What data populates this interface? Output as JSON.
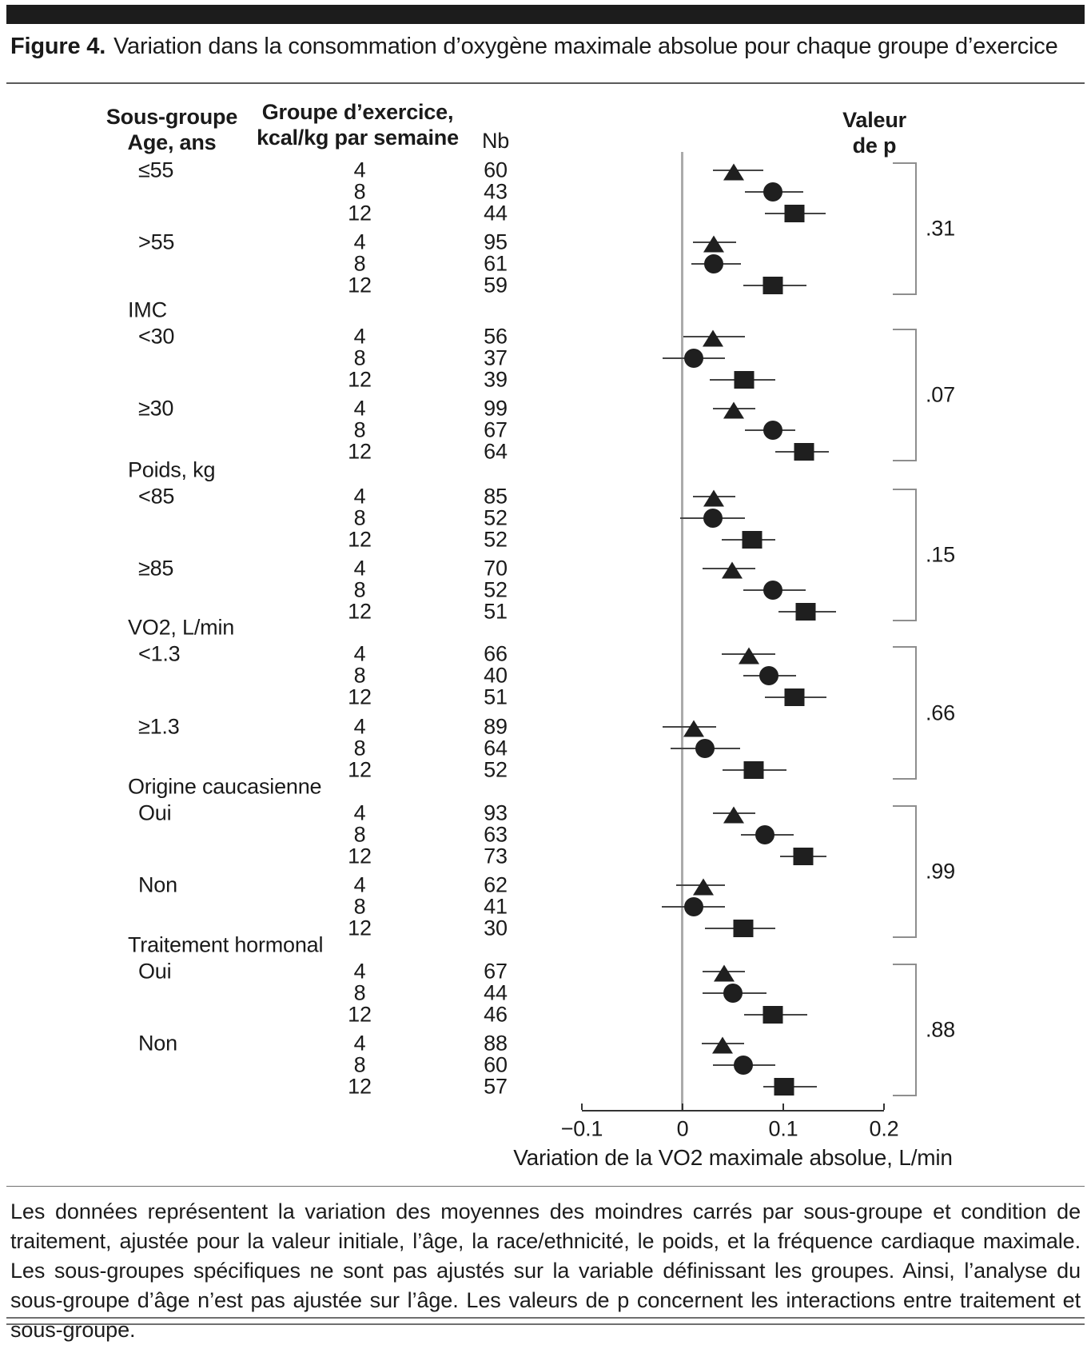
{
  "figure": {
    "label": "Figure 4.",
    "title": "Variation dans la consommation d’oxygène maximale absolue pour chaque groupe d’exercice"
  },
  "table": {
    "col1_header": [
      "Sous-groupe",
      "Age, ans"
    ],
    "col2_header": [
      "Groupe d’exercice,",
      "kcal/kg par semaine"
    ],
    "col3_header": "Nb",
    "pcol_header": [
      "Valeur",
      "de p"
    ]
  },
  "chart_data": {
    "type": "forest",
    "xlabel": "Variation de la VO2 maximale absolue, L/min",
    "x_ticks": [
      "−0.1",
      "0",
      "0.1",
      "0.2"
    ],
    "x_tick_values": [
      -0.1,
      0,
      0.1,
      0.2
    ],
    "xlim": [
      -0.1,
      0.2
    ],
    "grid": false,
    "markers": {
      "4": "triangle",
      "8": "circle",
      "12": "square"
    },
    "sections": [
      {
        "heading": null,
        "pvalue": ".31",
        "subgroups": [
          {
            "label": "≤55",
            "rows": [
              {
                "g": "4",
                "n": 60,
                "est": 0.051,
                "lo": 0.03,
                "hi": 0.08
              },
              {
                "g": "8",
                "n": 43,
                "est": 0.09,
                "lo": 0.062,
                "hi": 0.12
              },
              {
                "g": "12",
                "n": 44,
                "est": 0.111,
                "lo": 0.082,
                "hi": 0.142
              }
            ]
          },
          {
            "label": ">55",
            "rows": [
              {
                "g": "4",
                "n": 95,
                "est": 0.031,
                "lo": 0.01,
                "hi": 0.053
              },
              {
                "g": "8",
                "n": 61,
                "est": 0.031,
                "lo": 0.009,
                "hi": 0.058
              },
              {
                "g": "12",
                "n": 59,
                "est": 0.09,
                "lo": 0.06,
                "hi": 0.123
              }
            ]
          }
        ]
      },
      {
        "heading": "IMC",
        "pvalue": ".07",
        "subgroups": [
          {
            "label": "<30",
            "rows": [
              {
                "g": "4",
                "n": 56,
                "est": 0.03,
                "lo": 0.001,
                "hi": 0.062
              },
              {
                "g": "8",
                "n": 37,
                "est": 0.011,
                "lo": -0.02,
                "hi": 0.042
              },
              {
                "g": "12",
                "n": 39,
                "est": 0.061,
                "lo": 0.027,
                "hi": 0.092
              }
            ]
          },
          {
            "label": "≥30",
            "rows": [
              {
                "g": "4",
                "n": 99,
                "est": 0.051,
                "lo": 0.03,
                "hi": 0.072
              },
              {
                "g": "8",
                "n": 67,
                "est": 0.09,
                "lo": 0.062,
                "hi": 0.112
              },
              {
                "g": "12",
                "n": 64,
                "est": 0.121,
                "lo": 0.092,
                "hi": 0.145
              }
            ]
          }
        ]
      },
      {
        "heading": "Poids, kg",
        "pvalue": ".15",
        "subgroups": [
          {
            "label": "<85",
            "rows": [
              {
                "g": "4",
                "n": 85,
                "est": 0.031,
                "lo": 0.01,
                "hi": 0.052
              },
              {
                "g": "8",
                "n": 52,
                "est": 0.03,
                "lo": -0.002,
                "hi": 0.062
              },
              {
                "g": "12",
                "n": 52,
                "est": 0.069,
                "lo": 0.039,
                "hi": 0.092
              }
            ]
          },
          {
            "label": "≥85",
            "rows": [
              {
                "g": "4",
                "n": 70,
                "est": 0.049,
                "lo": 0.02,
                "hi": 0.072
              },
              {
                "g": "8",
                "n": 52,
                "est": 0.09,
                "lo": 0.06,
                "hi": 0.122
              },
              {
                "g": "12",
                "n": 51,
                "est": 0.122,
                "lo": 0.095,
                "hi": 0.152
              }
            ]
          }
        ]
      },
      {
        "heading": "VO2, L/min",
        "pvalue": ".66",
        "subgroups": [
          {
            "label": "<1.3",
            "rows": [
              {
                "g": "4",
                "n": 66,
                "est": 0.066,
                "lo": 0.039,
                "hi": 0.092
              },
              {
                "g": "8",
                "n": 40,
                "est": 0.086,
                "lo": 0.06,
                "hi": 0.113
              },
              {
                "g": "12",
                "n": 51,
                "est": 0.111,
                "lo": 0.082,
                "hi": 0.143
              }
            ]
          },
          {
            "label": "≥1.3",
            "rows": [
              {
                "g": "4",
                "n": 89,
                "est": 0.011,
                "lo": -0.02,
                "hi": 0.033
              },
              {
                "g": "8",
                "n": 64,
                "est": 0.022,
                "lo": -0.012,
                "hi": 0.057
              },
              {
                "g": "12",
                "n": 52,
                "est": 0.071,
                "lo": 0.04,
                "hi": 0.103
              }
            ]
          }
        ]
      },
      {
        "heading": "Origine caucasienne",
        "pvalue": ".99",
        "subgroups": [
          {
            "label": "Oui",
            "rows": [
              {
                "g": "4",
                "n": 93,
                "est": 0.051,
                "lo": 0.03,
                "hi": 0.072
              },
              {
                "g": "8",
                "n": 63,
                "est": 0.082,
                "lo": 0.058,
                "hi": 0.11
              },
              {
                "g": "12",
                "n": 73,
                "est": 0.12,
                "lo": 0.097,
                "hi": 0.143
              }
            ]
          },
          {
            "label": "Non",
            "rows": [
              {
                "g": "4",
                "n": 62,
                "est": 0.021,
                "lo": -0.006,
                "hi": 0.042
              },
              {
                "g": "8",
                "n": 41,
                "est": 0.011,
                "lo": -0.021,
                "hi": 0.042
              },
              {
                "g": "12",
                "n": 30,
                "est": 0.06,
                "lo": 0.022,
                "hi": 0.092
              }
            ]
          }
        ]
      },
      {
        "heading": "Traitement hormonal",
        "pvalue": ".88",
        "subgroups": [
          {
            "label": "Oui",
            "rows": [
              {
                "g": "4",
                "n": 67,
                "est": 0.041,
                "lo": 0.02,
                "hi": 0.062
              },
              {
                "g": "8",
                "n": 44,
                "est": 0.05,
                "lo": 0.02,
                "hi": 0.083
              },
              {
                "g": "12",
                "n": 46,
                "est": 0.09,
                "lo": 0.061,
                "hi": 0.124
              }
            ]
          },
          {
            "label": "Non",
            "rows": [
              {
                "g": "4",
                "n": 88,
                "est": 0.04,
                "lo": 0.019,
                "hi": 0.061
              },
              {
                "g": "8",
                "n": 60,
                "est": 0.06,
                "lo": 0.03,
                "hi": 0.092
              },
              {
                "g": "12",
                "n": 57,
                "est": 0.101,
                "lo": 0.08,
                "hi": 0.133
              }
            ]
          }
        ]
      }
    ]
  },
  "footnote": "Les données représentent la variation des moyennes des moindres carrés par sous-groupe et condition de traitement, ajustée pour la valeur initiale, l’âge, la race/ethnicité, le poids, et la fréquence cardiaque maximale. Les sous-groupes spécifiques ne sont pas ajustés sur la variable définissant les groupes. Ainsi, l’analyse du sous-groupe d’âge n’est pas ajustée sur l’âge. Les valeurs de p concernent les interactions entre traitement et sous-groupe.",
  "colors": {
    "marker": "#1f1f1f",
    "axis": "#333333",
    "zero_line": "#ababab",
    "bracket": "#8e8e8e",
    "top_bar": "#1c1c1c"
  }
}
